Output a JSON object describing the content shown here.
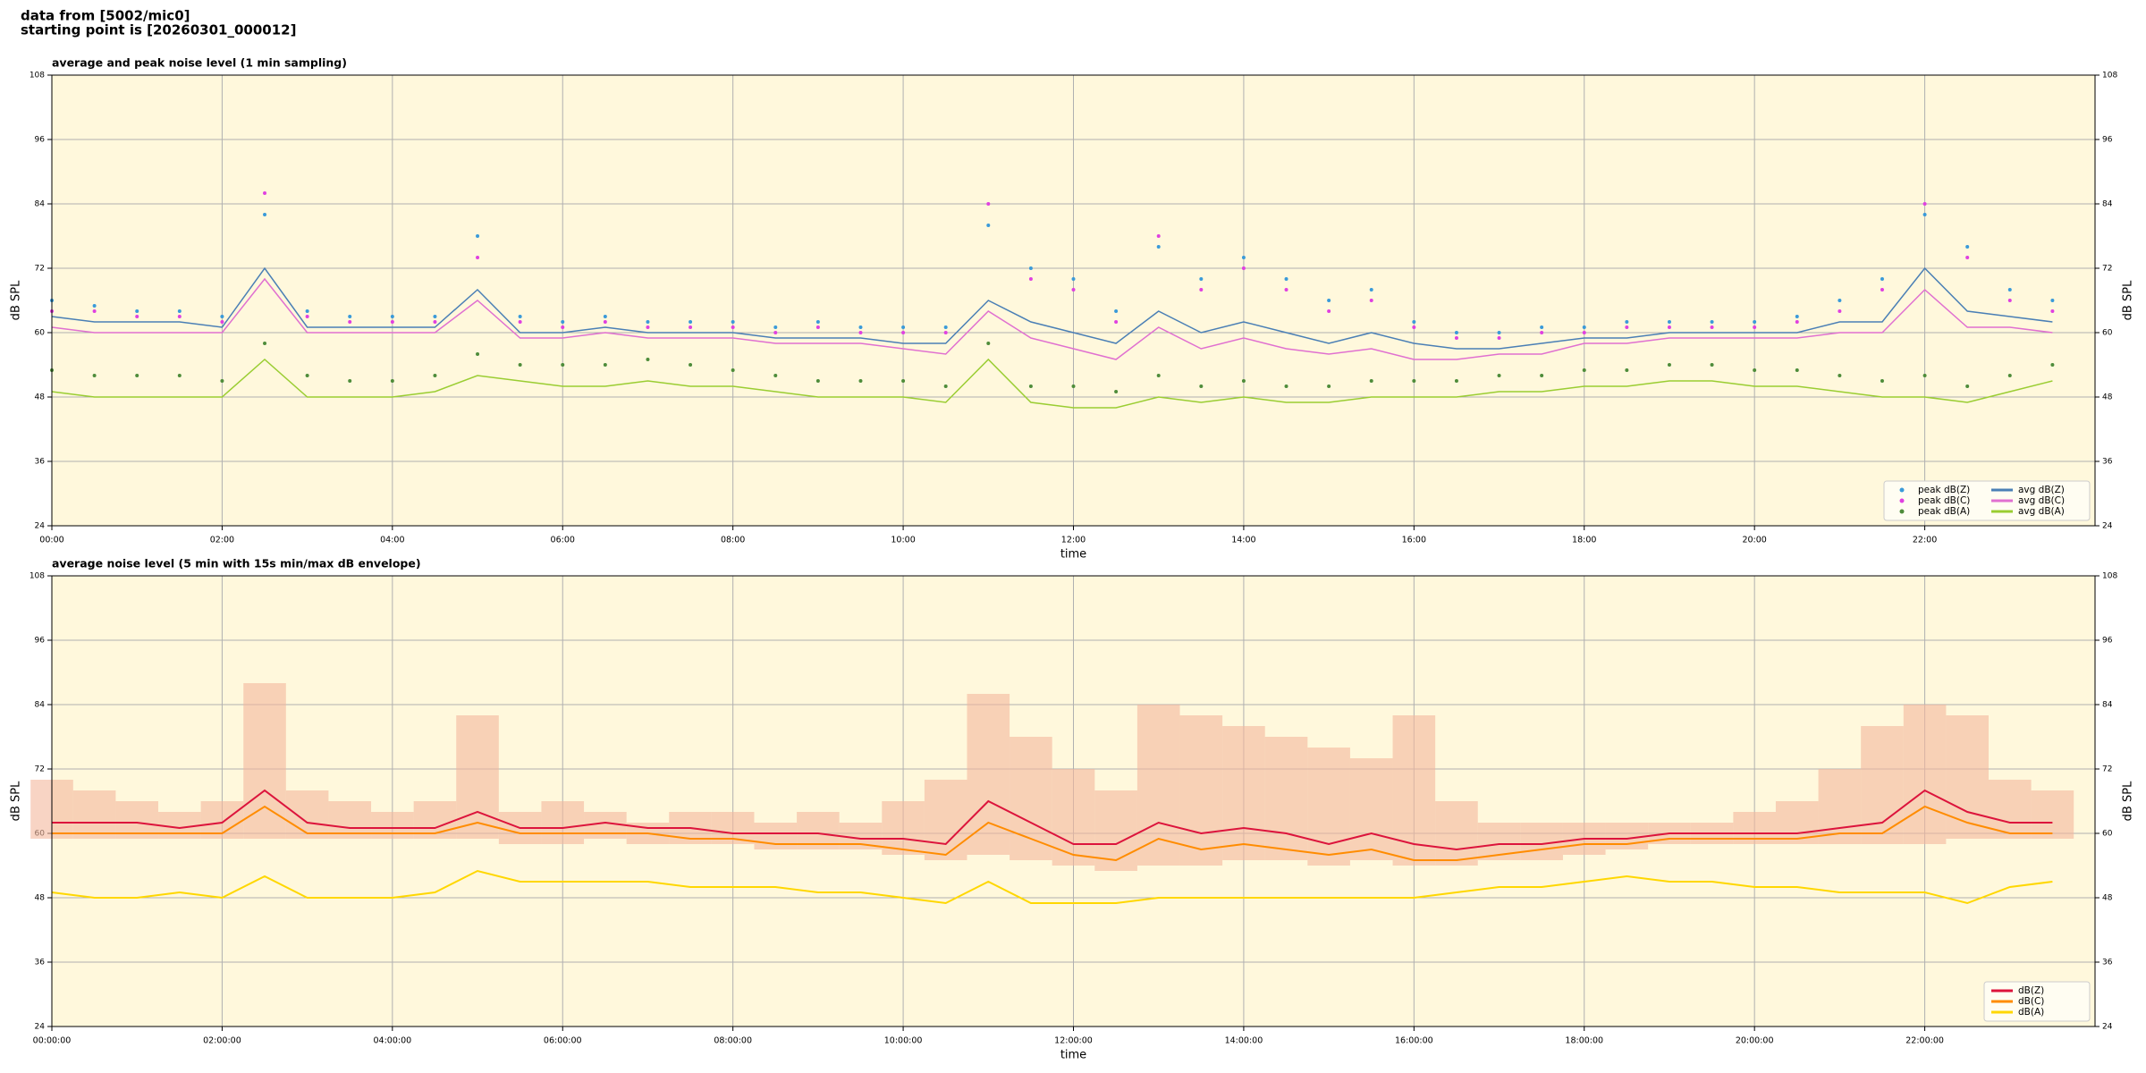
{
  "header": {
    "lines": [
      "data from [5002/mic0]",
      "starting point is [20260301_000012]"
    ]
  },
  "chart_data": [
    {
      "type": "line",
      "title": "average and peak noise level (1 min sampling)",
      "xlabel": "time",
      "ylabel": "dB SPL",
      "background": "#fff8dc",
      "grid": true,
      "legend": "lower right",
      "legend_columns": 2,
      "x": [
        0,
        0.5,
        1,
        1.5,
        2,
        2.5,
        3,
        3.5,
        4,
        4.5,
        5,
        5.5,
        6,
        6.5,
        7,
        7.5,
        8,
        8.5,
        9,
        9.5,
        10,
        10.5,
        11,
        11.5,
        12,
        12.5,
        13,
        13.5,
        14,
        14.5,
        15,
        15.5,
        16,
        16.5,
        17,
        17.5,
        18,
        18.5,
        19,
        19.5,
        20,
        20.5,
        21,
        21.5,
        22,
        22.5,
        23,
        23.5
      ],
      "xlim": [
        0,
        24
      ],
      "xticks": [
        {
          "value": 0,
          "label": "00:00"
        },
        {
          "value": 2,
          "label": "02:00"
        },
        {
          "value": 4,
          "label": "04:00"
        },
        {
          "value": 6,
          "label": "06:00"
        },
        {
          "value": 8,
          "label": "08:00"
        },
        {
          "value": 10,
          "label": "10:00"
        },
        {
          "value": 12,
          "label": "12:00"
        },
        {
          "value": 14,
          "label": "14:00"
        },
        {
          "value": 16,
          "label": "16:00"
        },
        {
          "value": 18,
          "label": "18:00"
        },
        {
          "value": 20,
          "label": "20:00"
        },
        {
          "value": 22,
          "label": "22:00"
        }
      ],
      "ylim": [
        24,
        108
      ],
      "yticks": [
        24,
        36,
        48,
        60,
        72,
        84,
        96,
        108
      ],
      "series": [
        {
          "name": "peak dB(Z)",
          "type": "scatter",
          "color": "#3a9ad9",
          "values": [
            66,
            65,
            64,
            64,
            63,
            82,
            64,
            63,
            63,
            63,
            78,
            63,
            62,
            63,
            62,
            62,
            62,
            61,
            62,
            61,
            61,
            61,
            80,
            72,
            70,
            64,
            76,
            70,
            74,
            70,
            66,
            68,
            62,
            60,
            60,
            61,
            61,
            62,
            62,
            62,
            62,
            63,
            66,
            70,
            82,
            76,
            68,
            66
          ]
        },
        {
          "name": "peak dB(C)",
          "type": "scatter",
          "color": "#e040e0",
          "values": [
            64,
            64,
            63,
            63,
            62,
            86,
            63,
            62,
            62,
            62,
            74,
            62,
            61,
            62,
            61,
            61,
            61,
            60,
            61,
            60,
            60,
            60,
            84,
            70,
            68,
            62,
            78,
            68,
            72,
            68,
            64,
            66,
            61,
            59,
            59,
            60,
            60,
            61,
            61,
            61,
            61,
            62,
            64,
            68,
            84,
            74,
            66,
            64
          ]
        },
        {
          "name": "peak dB(A)",
          "type": "scatter",
          "color": "#4e8c3a",
          "values": [
            53,
            52,
            52,
            52,
            51,
            58,
            52,
            51,
            51,
            52,
            56,
            54,
            54,
            54,
            55,
            54,
            53,
            52,
            51,
            51,
            51,
            50,
            58,
            50,
            50,
            49,
            52,
            50,
            51,
            50,
            50,
            51,
            51,
            51,
            52,
            52,
            53,
            53,
            54,
            54,
            53,
            53,
            52,
            51,
            52,
            50,
            52,
            54
          ]
        },
        {
          "name": "avg dB(Z)",
          "type": "line",
          "color": "#4a7fb5",
          "values": [
            63,
            62,
            62,
            62,
            61,
            72,
            61,
            61,
            61,
            61,
            68,
            60,
            60,
            61,
            60,
            60,
            60,
            59,
            59,
            59,
            58,
            58,
            66,
            62,
            60,
            58,
            64,
            60,
            62,
            60,
            58,
            60,
            58,
            57,
            57,
            58,
            59,
            59,
            60,
            60,
            60,
            60,
            62,
            62,
            72,
            64,
            63,
            62
          ]
        },
        {
          "name": "avg dB(C)",
          "type": "line",
          "color": "#e070d0",
          "values": [
            61,
            60,
            60,
            60,
            60,
            70,
            60,
            60,
            60,
            60,
            66,
            59,
            59,
            60,
            59,
            59,
            59,
            58,
            58,
            58,
            57,
            56,
            64,
            59,
            57,
            55,
            61,
            57,
            59,
            57,
            56,
            57,
            55,
            55,
            56,
            56,
            58,
            58,
            59,
            59,
            59,
            59,
            60,
            60,
            68,
            61,
            61,
            60
          ]
        },
        {
          "name": "avg dB(A)",
          "type": "line",
          "color": "#9acd32",
          "values": [
            49,
            48,
            48,
            48,
            48,
            55,
            48,
            48,
            48,
            49,
            52,
            51,
            50,
            50,
            51,
            50,
            50,
            49,
            48,
            48,
            48,
            47,
            55,
            47,
            46,
            46,
            48,
            47,
            48,
            47,
            47,
            48,
            48,
            48,
            49,
            49,
            50,
            50,
            51,
            51,
            50,
            50,
            49,
            48,
            48,
            47,
            49,
            51
          ]
        }
      ]
    },
    {
      "type": "line",
      "title": "average noise level (5 min with 15s min/max dB envelope)",
      "xlabel": "time",
      "ylabel": "dB SPL",
      "background": "#fff8dc",
      "grid": true,
      "legend": "lower right",
      "legend_columns": 1,
      "x": [
        0,
        0.5,
        1,
        1.5,
        2,
        2.5,
        3,
        3.5,
        4,
        4.5,
        5,
        5.5,
        6,
        6.5,
        7,
        7.5,
        8,
        8.5,
        9,
        9.5,
        10,
        10.5,
        11,
        11.5,
        12,
        12.5,
        13,
        13.5,
        14,
        14.5,
        15,
        15.5,
        16,
        16.5,
        17,
        17.5,
        18,
        18.5,
        19,
        19.5,
        20,
        20.5,
        21,
        21.5,
        22,
        22.5,
        23,
        23.5
      ],
      "xlim": [
        0,
        24
      ],
      "xticks": [
        {
          "value": 0,
          "label": "00:00:00"
        },
        {
          "value": 2,
          "label": "02:00:00"
        },
        {
          "value": 4,
          "label": "04:00:00"
        },
        {
          "value": 6,
          "label": "06:00:00"
        },
        {
          "value": 8,
          "label": "08:00:00"
        },
        {
          "value": 10,
          "label": "10:00:00"
        },
        {
          "value": 12,
          "label": "12:00:00"
        },
        {
          "value": 14,
          "label": "14:00:00"
        },
        {
          "value": 16,
          "label": "16:00:00"
        },
        {
          "value": 18,
          "label": "18:00:00"
        },
        {
          "value": 20,
          "label": "20:00:00"
        },
        {
          "value": 22,
          "label": "22:00:00"
        }
      ],
      "ylim": [
        24,
        108
      ],
      "yticks": [
        24,
        36,
        48,
        60,
        72,
        84,
        96,
        108
      ],
      "band": {
        "color": "#f4b89c",
        "lower": [
          59,
          59,
          59,
          59,
          59,
          59,
          59,
          59,
          59,
          59,
          59,
          58,
          58,
          59,
          58,
          58,
          58,
          57,
          57,
          57,
          56,
          55,
          56,
          55,
          54,
          53,
          54,
          54,
          55,
          55,
          54,
          55,
          54,
          54,
          55,
          55,
          56,
          57,
          58,
          58,
          58,
          58,
          58,
          58,
          58,
          59,
          59,
          59
        ],
        "upper": [
          70,
          68,
          66,
          64,
          66,
          88,
          68,
          66,
          64,
          66,
          82,
          64,
          66,
          64,
          62,
          64,
          64,
          62,
          64,
          62,
          66,
          70,
          86,
          78,
          72,
          68,
          84,
          82,
          80,
          78,
          76,
          74,
          82,
          66,
          62,
          62,
          62,
          62,
          62,
          62,
          64,
          66,
          72,
          80,
          84,
          82,
          70,
          68
        ]
      },
      "series": [
        {
          "name": "dB(Z)",
          "type": "line",
          "color": "#dc143c",
          "values": [
            62,
            62,
            62,
            61,
            62,
            68,
            62,
            61,
            61,
            61,
            64,
            61,
            61,
            62,
            61,
            61,
            60,
            60,
            60,
            59,
            59,
            58,
            66,
            62,
            58,
            58,
            62,
            60,
            61,
            60,
            58,
            60,
            58,
            57,
            58,
            58,
            59,
            59,
            60,
            60,
            60,
            60,
            61,
            62,
            68,
            64,
            62,
            62
          ]
        },
        {
          "name": "dB(C)",
          "type": "line",
          "color": "#ff8c00",
          "values": [
            60,
            60,
            60,
            60,
            60,
            65,
            60,
            60,
            60,
            60,
            62,
            60,
            60,
            60,
            60,
            59,
            59,
            58,
            58,
            58,
            57,
            56,
            62,
            59,
            56,
            55,
            59,
            57,
            58,
            57,
            56,
            57,
            55,
            55,
            56,
            57,
            58,
            58,
            59,
            59,
            59,
            59,
            60,
            60,
            65,
            62,
            60,
            60
          ]
        },
        {
          "name": "dB(A)",
          "type": "line",
          "color": "#ffd700",
          "values": [
            49,
            48,
            48,
            49,
            48,
            52,
            48,
            48,
            48,
            49,
            53,
            51,
            51,
            51,
            51,
            50,
            50,
            50,
            49,
            49,
            48,
            47,
            51,
            47,
            47,
            47,
            48,
            48,
            48,
            48,
            48,
            48,
            48,
            49,
            50,
            50,
            51,
            52,
            51,
            51,
            50,
            50,
            49,
            49,
            49,
            47,
            50,
            51
          ]
        }
      ]
    }
  ]
}
